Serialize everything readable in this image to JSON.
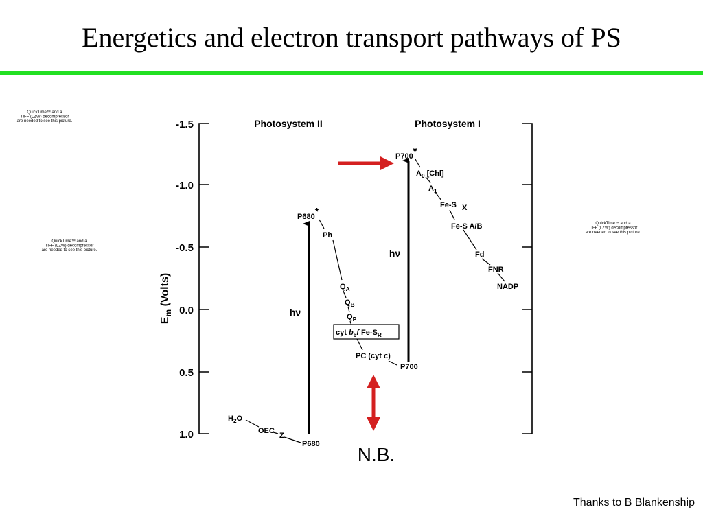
{
  "header": {
    "title": "Energetics and electron transport pathways of PS"
  },
  "placeholders": [
    {
      "lines": [
        "QuickTime™ and a",
        "TIFF (LZW) decompressor",
        "are needed to see this picture."
      ]
    },
    {
      "lines": [
        "QuickTime™ and a",
        "TIFF (LZW) decompressor",
        "are needed to see this picture."
      ]
    },
    {
      "lines": [
        "QuickTime™ and a",
        "TIFF (LZW) decompressor",
        "are needed to see this picture."
      ]
    }
  ],
  "diagram": {
    "axis_label": {
      "segments": [
        {
          "text": "E"
        },
        {
          "text": "m",
          "style": "sub"
        },
        {
          "text": " (Volts)"
        }
      ]
    },
    "axis_ticks": [
      "-1.5",
      "-1.0",
      "-0.5",
      "0.0",
      "0.5",
      "1.0"
    ],
    "headings": [
      "Photosystem II",
      "Photosystem I"
    ],
    "light": [
      "hν",
      "hν"
    ],
    "nodes": [
      {
        "segments": [
          {
            "text": "P680"
          },
          {
            "text": "*",
            "style": "sup"
          }
        ]
      },
      {
        "segments": [
          {
            "text": "Ph"
          }
        ]
      },
      {
        "segments": [
          {
            "text": "Q"
          },
          {
            "text": "A",
            "style": "sub"
          }
        ]
      },
      {
        "segments": [
          {
            "text": "Q"
          },
          {
            "text": "B",
            "style": "sub"
          }
        ]
      },
      {
        "segments": [
          {
            "text": "Q"
          },
          {
            "text": "P",
            "style": "sub"
          }
        ]
      },
      {
        "segments": [
          {
            "text": "cyt "
          },
          {
            "text": "b",
            "style": "italic"
          },
          {
            "text": "6",
            "style": "sub"
          },
          {
            "text": "f",
            "style": "italic"
          },
          {
            "text": "   Fe-S"
          },
          {
            "text": "R",
            "style": "sub"
          }
        ]
      },
      {
        "segments": [
          {
            "text": "PC (cyt "
          },
          {
            "text": "c",
            "style": "italic"
          },
          {
            "text": ")"
          }
        ]
      },
      {
        "segments": [
          {
            "text": "P700"
          }
        ]
      },
      {
        "segments": [
          {
            "text": "P700"
          },
          {
            "text": "*",
            "style": "sup"
          }
        ]
      },
      {
        "segments": [
          {
            "text": "A"
          },
          {
            "text": "0",
            "style": "sub"
          },
          {
            "text": " [Chl]"
          }
        ]
      },
      {
        "segments": [
          {
            "text": "A"
          },
          {
            "text": "1",
            "style": "sub"
          }
        ]
      },
      {
        "segments": [
          {
            "text": "Fe-S"
          }
        ]
      },
      {
        "segments": [
          {
            "text": "X"
          }
        ]
      },
      {
        "segments": [
          {
            "text": "Fe-S"
          },
          {
            "text": " A/B"
          }
        ]
      },
      {
        "segments": [
          {
            "text": "Fd"
          }
        ]
      },
      {
        "segments": [
          {
            "text": "FNR"
          }
        ]
      },
      {
        "segments": [
          {
            "text": "NADP"
          }
        ]
      },
      {
        "segments": [
          {
            "text": "H"
          },
          {
            "text": "2",
            "style": "sub"
          },
          {
            "text": "O"
          }
        ]
      },
      {
        "segments": [
          {
            "text": "OEC"
          }
        ]
      },
      {
        "segments": [
          {
            "text": "Z"
          }
        ]
      },
      {
        "segments": [
          {
            "text": "P680"
          }
        ]
      }
    ]
  },
  "note": "N.B.",
  "footer": "Thanks to B Blankenship"
}
